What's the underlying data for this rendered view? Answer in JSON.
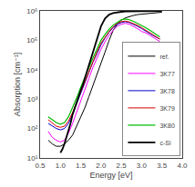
{
  "chart_data": {
    "type": "line",
    "xlabel": "Energy [eV]",
    "ylabel": "Absorption [cm⁻¹]",
    "log": "y",
    "grid": false,
    "legend": "lower right",
    "xlim": [
      0.5,
      4.0
    ],
    "ylim": [
      10,
      1000000
    ],
    "xticks": [
      0.5,
      {
        "value": 1.0,
        "label": "1.0"
      },
      1.5,
      {
        "value": 2.0,
        "label": "2.0"
      },
      2.5,
      {
        "value": 3.0,
        "label": "3.0"
      },
      3.5,
      {
        "value": 4.0,
        "label": "4.0"
      }
    ],
    "yticks": [
      {
        "value": 10,
        "label": "10¹"
      },
      {
        "value": 100,
        "label": "10²"
      },
      {
        "value": 1000,
        "label": "10³"
      },
      {
        "value": 10000,
        "label": "10⁴"
      },
      {
        "value": 100000,
        "label": "10⁵"
      },
      {
        "value": 1000000,
        "label": "10⁶"
      }
    ],
    "series": [
      {
        "name": "ref.",
        "color": "black",
        "x": [
          0.7,
          0.8,
          0.9,
          1.0,
          1.1,
          1.2,
          1.3,
          1.4,
          1.5,
          1.6,
          1.7,
          1.8,
          1.9,
          2.0,
          2.1,
          2.2,
          2.3,
          2.4,
          2.5,
          2.6,
          2.7,
          2.8,
          2.9,
          3.0,
          3.1,
          3.2,
          3.3,
          3.4,
          3.5
        ],
        "values": [
          40.0,
          30.0,
          25.0,
          25.0,
          30.0,
          40.0,
          60.0,
          120.0,
          250.0,
          500.0,
          1200.0,
          3000.0,
          7000.0,
          18000.0,
          40000.0,
          100000.0,
          220000.0,
          350000.0,
          480000.0,
          580000.0,
          650000.0,
          700000.0,
          750000.0,
          780000.0,
          800000.0,
          820000.0,
          850000.0,
          880000.0,
          900000.0
        ]
      },
      {
        "name": "3K77",
        "color": "#ff00ff",
        "x": [
          0.7,
          0.8,
          0.9,
          1.0,
          1.1,
          1.2,
          1.3,
          1.4,
          1.5,
          1.6,
          1.7,
          1.8,
          1.9,
          2.0,
          2.1,
          2.2,
          2.3,
          2.4,
          2.5,
          2.6,
          2.7,
          2.8,
          2.9,
          3.0,
          3.1,
          3.2,
          3.3,
          3.45
        ],
        "values": [
          80.0,
          50.0,
          40.0,
          35.0,
          40.0,
          70.0,
          150.0,
          350.0,
          800.0,
          2000.0,
          5000.0,
          12000.0,
          25000.0,
          50000.0,
          90000.0,
          150000.0,
          220000.0,
          300000.0,
          350000.0,
          380000.0,
          350000.0,
          300000.0,
          250000.0,
          200000.0,
          180000.0,
          150000.0,
          120000.0,
          90000.0
        ]
      },
      {
        "name": "3K78",
        "color": "#0000cc",
        "x": [
          0.7,
          0.8,
          0.9,
          1.0,
          1.1,
          1.2,
          1.3,
          1.4,
          1.5,
          1.6,
          1.7,
          1.8,
          1.9,
          2.0,
          2.1,
          2.2,
          2.3,
          2.4,
          2.5,
          2.6,
          2.7,
          2.8,
          2.9,
          3.0,
          3.1,
          3.2,
          3.3,
          3.45
        ],
        "values": [
          150.0,
          120.0,
          100.0,
          90.0,
          100.0,
          150.0,
          300.0,
          700.0,
          1500.0,
          3500.0,
          8000.0,
          18000.0,
          35000.0,
          70000.0,
          120000.0,
          190000.0,
          270000.0,
          350000.0,
          400000.0,
          430000.0,
          400000.0,
          350000.0,
          300000.0,
          250000.0,
          200000.0,
          170000.0,
          140000.0,
          110000.0
        ]
      },
      {
        "name": "3K79",
        "color": "#dd0000",
        "x": [
          0.7,
          0.8,
          0.9,
          1.0,
          1.1,
          1.2,
          1.3,
          1.4,
          1.5,
          1.6,
          1.7,
          1.8,
          1.9,
          2.0,
          2.1,
          2.2,
          2.3,
          2.4,
          2.5,
          2.6,
          2.7,
          2.8,
          2.9,
          3.0,
          3.1,
          3.2,
          3.3,
          3.45
        ],
        "values": [
          200.0,
          150.0,
          120.0,
          110.0,
          120.0,
          180.0,
          350.0,
          800.0,
          1800.0,
          4000.0,
          9000.0,
          20000.0,
          40000.0,
          80000.0,
          130000.0,
          200000.0,
          290000.0,
          380000.0,
          430000.0,
          450000.0,
          420000.0,
          370000.0,
          320000.0,
          270000.0,
          220000.0,
          180000.0,
          150000.0,
          110000.0
        ]
      },
      {
        "name": "3K80",
        "color": "#00bb00",
        "x": [
          0.7,
          0.8,
          0.9,
          1.0,
          1.1,
          1.2,
          1.3,
          1.4,
          1.5,
          1.6,
          1.7,
          1.8,
          1.9,
          2.0,
          2.1,
          2.2,
          2.3,
          2.4,
          2.5,
          2.6,
          2.7,
          2.8,
          2.9,
          3.0,
          3.1,
          3.2,
          3.3,
          3.45
        ],
        "values": [
          250.0,
          200.0,
          160.0,
          140.0,
          160.0,
          250.0,
          500.0,
          1100.0,
          2500.0,
          5500.0,
          12000.0,
          25000.0,
          50000.0,
          100000.0,
          160000.0,
          240000.0,
          330000.0,
          420000.0,
          500000.0,
          530000.0,
          500000.0,
          440000.0,
          380000.0,
          320000.0,
          270000.0,
          220000.0,
          180000.0,
          130000.0
        ]
      },
      {
        "name": "c-Si",
        "color": "black",
        "x": [
          1.0,
          1.05,
          1.1,
          1.15,
          1.2,
          1.25,
          1.3,
          1.35,
          1.4,
          1.45,
          1.5,
          1.55,
          1.6,
          1.65,
          1.7,
          1.75,
          1.8,
          1.85,
          1.9,
          1.95,
          2.0,
          2.1,
          2.2,
          2.3,
          2.4,
          2.5,
          2.6,
          2.7,
          2.8,
          2.9,
          3.0,
          3.1,
          3.2,
          3.3,
          3.4,
          3.5
        ],
        "values": [
          15.0,
          20.0,
          30.0,
          50.0,
          80.0,
          150.0,
          300.0,
          500.0,
          800.0,
          1200.0,
          2000.0,
          3000.0,
          5000.0,
          8000.0,
          13000.0,
          20000.0,
          35000.0,
          60000.0,
          100000.0,
          180000.0,
          300000.0,
          550000.0,
          750000.0,
          850000.0,
          900000.0,
          930000.0,
          950000.0,
          960000.0,
          970000.0,
          975000.0,
          980000.0,
          982000.0,
          985000.0,
          987000.0,
          990000.0,
          992000.0
        ]
      }
    ]
  }
}
